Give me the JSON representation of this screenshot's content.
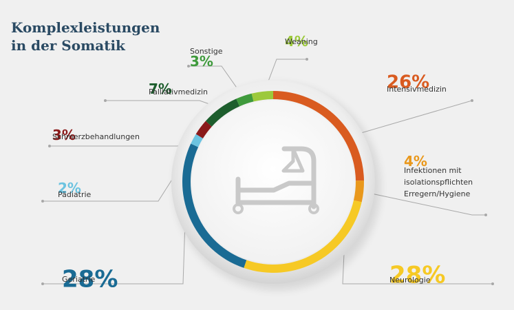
{
  "title": {
    "line1": "Komplexleistungen",
    "line2": "in der Somatik"
  },
  "icon": "hospital-bed-icon",
  "chart_data": {
    "type": "pie",
    "style": "donut",
    "unit": "%",
    "slices": [
      {
        "name": "Intensivmedizin",
        "label_lines": [
          "Intensivmedizin"
        ],
        "value": 26,
        "display": "26%",
        "color": "#d95b20"
      },
      {
        "name": "Infektionen mit isolationspflichten Erregern/Hygiene",
        "label_lines": [
          "Infektionen mit",
          "isolationspflichten",
          "Erregern/Hygiene"
        ],
        "value": 4,
        "display": "4%",
        "color": "#e9981c"
      },
      {
        "name": "Neurologie",
        "label_lines": [
          "Neurologie"
        ],
        "value": 28,
        "display": "28%",
        "color": "#f6c925"
      },
      {
        "name": "Geriatrie",
        "label_lines": [
          "Geriatrie"
        ],
        "value": 28,
        "display": "28%",
        "color": "#1a6b94"
      },
      {
        "name": "Pädiatrie",
        "label_lines": [
          "Pädiatrie"
        ],
        "value": 2,
        "display": "2%",
        "color": "#6cc3e0"
      },
      {
        "name": "Schmerzbehandlungen",
        "label_lines": [
          "Schmerzbehandlungen"
        ],
        "value": 3,
        "display": "3%",
        "color": "#8a1a1a"
      },
      {
        "name": "Palliativmedizin",
        "label_lines": [
          "Palliativmedizin"
        ],
        "value": 7,
        "display": "7%",
        "color": "#1d5e2d"
      },
      {
        "name": "Sonstige",
        "label_lines": [
          "Sonstige"
        ],
        "value": 3,
        "display": "3%",
        "color": "#3f9a3c"
      },
      {
        "name": "Weaning",
        "label_lines": [
          "Weaning"
        ],
        "value": 4,
        "display": "4%",
        "color": "#9cc93b"
      }
    ]
  }
}
